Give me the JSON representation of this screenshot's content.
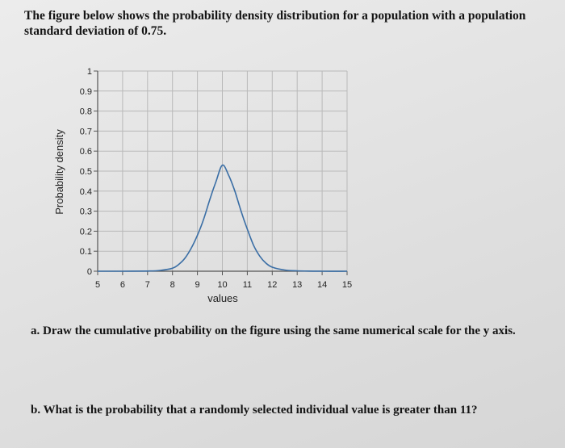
{
  "question": {
    "intro": "The figure below shows the probability density distribution for a population with a population standard deviation of 0.75.",
    "part_a": "a. Draw the cumulative probability on the figure using the same numerical scale for the y axis.",
    "part_b": "b. What is the probability that a randomly selected individual value is greater than 11?"
  },
  "chart_data": {
    "type": "line",
    "title": "",
    "xlabel": "values",
    "ylabel": "Probability density",
    "xlim": [
      5,
      15
    ],
    "ylim": [
      0,
      1
    ],
    "x_ticks": [
      5,
      6,
      7,
      8,
      9,
      10,
      11,
      12,
      13,
      14,
      15
    ],
    "y_ticks": [
      0,
      0.1,
      0.2,
      0.3,
      0.4,
      0.5,
      0.6,
      0.7,
      0.8,
      0.9,
      1
    ],
    "y_tick_labels": [
      "0",
      "0.1",
      "0.2",
      "0.3",
      "0.4",
      "0.5",
      "0.6",
      "0.7",
      "0.8",
      "0.9",
      "1"
    ],
    "grid": true,
    "line_color": "#3a6ea5",
    "series": [
      {
        "x": [
          5,
          6,
          7,
          7.5,
          8,
          8.25,
          8.5,
          8.75,
          9,
          9.25,
          9.5,
          9.75,
          10,
          10.25,
          10.5,
          10.75,
          11,
          11.25,
          11.5,
          11.75,
          12,
          12.5,
          13,
          14,
          15
        ],
        "y": [
          0,
          0,
          0.001,
          0.004,
          0.015,
          0.034,
          0.065,
          0.115,
          0.18,
          0.26,
          0.36,
          0.45,
          0.53,
          0.48,
          0.4,
          0.3,
          0.21,
          0.13,
          0.075,
          0.04,
          0.02,
          0.006,
          0.002,
          0,
          0
        ]
      }
    ]
  }
}
